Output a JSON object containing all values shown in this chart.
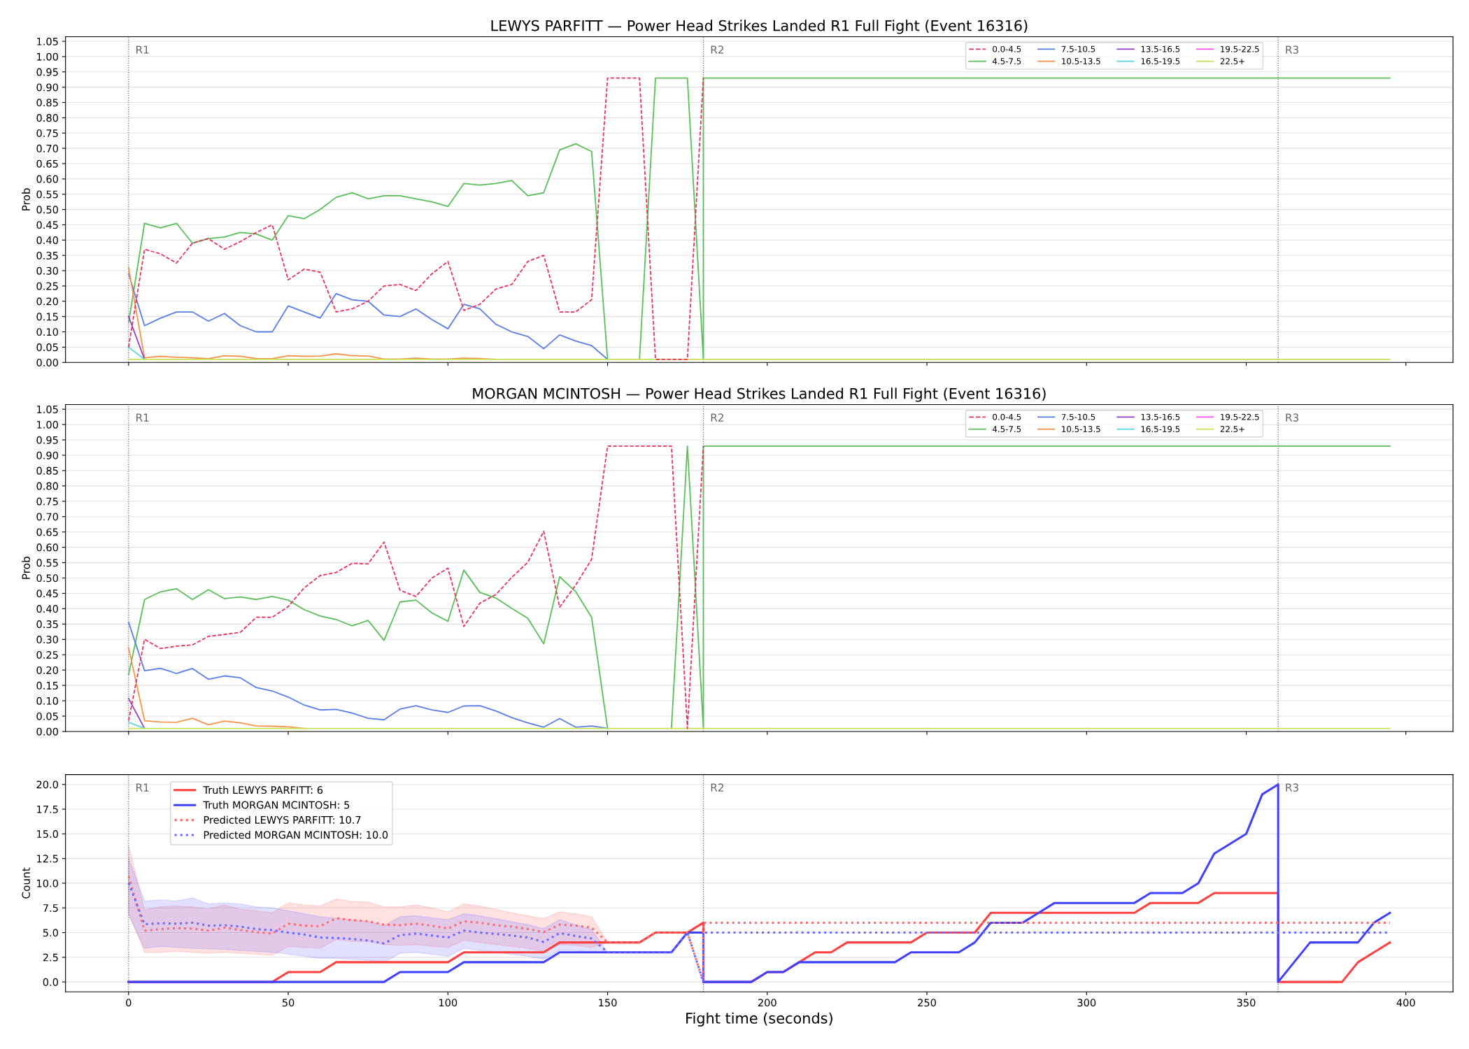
{
  "chart_data": [
    {
      "type": "line",
      "title": "LEWYS PARFITT — Power Head Strikes Landed R1 Full Fight (Event 16316)",
      "ylabel": "Prob",
      "x": [
        0,
        5,
        10,
        15,
        20,
        25,
        30,
        35,
        40,
        45,
        50,
        55,
        60,
        65,
        70,
        75,
        80,
        85,
        90,
        95,
        100,
        105,
        110,
        115,
        120,
        125,
        130,
        135,
        140,
        145,
        150,
        155,
        160,
        165,
        170,
        175,
        180,
        180,
        395
      ],
      "series": [
        {
          "name": "0.0-4.5",
          "color": "#e6335f",
          "line_style": "dashed",
          "values": [
            0.05,
            0.37,
            0.355,
            0.325,
            0.39,
            0.405,
            0.37,
            0.395,
            0.425,
            0.45,
            0.27,
            0.305,
            0.295,
            0.165,
            0.175,
            0.2,
            0.25,
            0.255,
            0.235,
            0.29,
            0.33,
            0.17,
            0.19,
            0.24,
            0.255,
            0.33,
            0.35,
            0.165,
            0.165,
            0.205,
            0.93,
            0.93,
            0.93,
            0.01,
            0.01,
            0.01,
            0.93,
            null,
            null
          ]
        },
        {
          "name": "4.5-7.5",
          "color": "#5abf5a",
          "values": [
            0.13,
            0.455,
            0.44,
            0.455,
            0.39,
            0.405,
            0.41,
            0.425,
            0.42,
            0.4,
            0.48,
            0.47,
            0.5,
            0.54,
            0.555,
            0.535,
            0.545,
            0.545,
            0.535,
            0.525,
            0.51,
            0.585,
            0.58,
            0.585,
            0.595,
            0.545,
            0.555,
            0.695,
            0.715,
            0.69,
            0.01,
            null,
            0.01,
            0.93,
            0.93,
            0.93,
            0.01,
            0.93,
            0.93
          ]
        },
        {
          "name": "7.5-10.5",
          "color": "#5a7ee6",
          "values": [
            0.29,
            0.12,
            0.145,
            0.165,
            0.165,
            0.135,
            0.16,
            0.12,
            0.1,
            0.1,
            0.185,
            0.165,
            0.145,
            0.225,
            0.205,
            0.2,
            0.155,
            0.15,
            0.175,
            0.14,
            0.11,
            0.19,
            0.175,
            0.125,
            0.1,
            0.085,
            0.045,
            0.09,
            0.07,
            0.055,
            0.01,
            null,
            null,
            null,
            null,
            null,
            null,
            null,
            null
          ]
        },
        {
          "name": "10.5-13.5",
          "color": "#f7944a",
          "values": [
            0.31,
            0.015,
            0.02,
            0.017,
            0.015,
            0.012,
            0.022,
            0.02,
            0.013,
            0.012,
            0.022,
            0.02,
            0.021,
            0.028,
            0.022,
            0.021,
            0.011,
            0.011,
            0.014,
            0.011,
            0.011,
            0.014,
            0.013,
            0.01,
            null,
            null,
            null,
            null,
            null,
            null,
            null,
            null,
            null,
            null,
            null,
            null,
            null,
            null,
            null
          ]
        },
        {
          "name": "13.5-16.5",
          "color": "#9440c8",
          "values": [
            0.15,
            0.01,
            null,
            null,
            null,
            null,
            null,
            null,
            null,
            null,
            null,
            null,
            null,
            null,
            null,
            null,
            null,
            null,
            null,
            null,
            null,
            null,
            null,
            null,
            null,
            null,
            null,
            null,
            null,
            null,
            null,
            null,
            null,
            null,
            null,
            null,
            null,
            null,
            null
          ]
        },
        {
          "name": "16.5-19.5",
          "color": "#5bd3e8",
          "values": [
            0.05,
            0.01,
            null,
            null,
            null,
            null,
            null,
            null,
            null,
            null,
            null,
            null,
            null,
            null,
            null,
            null,
            null,
            null,
            null,
            null,
            null,
            null,
            null,
            null,
            null,
            null,
            null,
            null,
            null,
            null,
            null,
            null,
            null,
            null,
            null,
            null,
            null,
            null,
            null
          ]
        },
        {
          "name": "19.5-22.5",
          "color": "#f057f0",
          "values": [
            null,
            null,
            null,
            null,
            null,
            null,
            null,
            null,
            null,
            null,
            null,
            null,
            null,
            null,
            null,
            null,
            null,
            null,
            null,
            null,
            null,
            null,
            null,
            null,
            null,
            null,
            null,
            null,
            null,
            null,
            null,
            null,
            null,
            null,
            null,
            null,
            null,
            null,
            null
          ]
        },
        {
          "name": "22.5+",
          "color": "#c6e35a",
          "values": [
            0.01,
            0.01,
            0.01,
            0.01,
            0.01,
            0.01,
            0.01,
            0.01,
            0.01,
            0.01,
            0.01,
            0.01,
            0.01,
            0.01,
            0.01,
            0.01,
            0.01,
            0.01,
            0.01,
            0.01,
            0.01,
            0.01,
            0.01,
            0.01,
            0.01,
            0.01,
            0.01,
            0.01,
            0.01,
            0.01,
            0.01,
            0.01,
            0.01,
            0.01,
            0.01,
            0.01,
            0.01,
            0.01,
            0.01
          ]
        }
      ],
      "xlim": [
        -19.75,
        414.75
      ],
      "xticks": [
        0,
        50,
        100,
        150,
        200,
        250,
        300,
        350,
        400
      ],
      "ylim": [
        0,
        1.065
      ],
      "yticks": [
        {
          "value": 0,
          "label": "0.00"
        },
        {
          "value": 0.05,
          "label": "0.05"
        },
        {
          "value": 0.1,
          "label": "0.10"
        },
        {
          "value": 0.15,
          "label": "0.15"
        },
        {
          "value": 0.2,
          "label": "0.20"
        },
        {
          "value": 0.25,
          "label": "0.25"
        },
        {
          "value": 0.3,
          "label": "0.30"
        },
        {
          "value": 0.35,
          "label": "0.35"
        },
        {
          "value": 0.4,
          "label": "0.40"
        },
        {
          "value": 0.45,
          "label": "0.45"
        },
        {
          "value": 0.5,
          "label": "0.50"
        },
        {
          "value": 0.55,
          "label": "0.55"
        },
        {
          "value": 0.6,
          "label": "0.60"
        },
        {
          "value": 0.65,
          "label": "0.65"
        },
        {
          "value": 0.7,
          "label": "0.70"
        },
        {
          "value": 0.75,
          "label": "0.75"
        },
        {
          "value": 0.8,
          "label": "0.80"
        },
        {
          "value": 0.85,
          "label": "0.85"
        },
        {
          "value": 0.9,
          "label": "0.90"
        },
        {
          "value": 0.95,
          "label": "0.95"
        },
        {
          "value": 1,
          "label": "1.00"
        },
        {
          "value": 1.05,
          "label": "1.05"
        }
      ],
      "tick_labels": "y",
      "grid": "y",
      "legend": "top right",
      "ref_lines": [
        {
          "axis": "x",
          "value": 0,
          "label": "R1",
          "color": "#666666",
          "line_style": "dotted"
        },
        {
          "axis": "x",
          "value": 180,
          "label": "R2",
          "color": "#666666",
          "line_style": "dotted"
        },
        {
          "axis": "x",
          "value": 360,
          "label": "R3",
          "color": "#666666",
          "line_style": "dotted"
        }
      ]
    },
    {
      "type": "line",
      "title": "MORGAN MCINTOSH — Power Head Strikes Landed R1 Full Fight (Event 16316)",
      "ylabel": "Prob",
      "x": [
        0,
        5,
        10,
        15,
        20,
        25,
        30,
        35,
        40,
        45,
        50,
        55,
        60,
        65,
        70,
        75,
        80,
        85,
        90,
        95,
        100,
        105,
        110,
        115,
        120,
        125,
        130,
        135,
        140,
        145,
        150,
        155,
        160,
        165,
        170,
        175,
        180,
        180,
        395
      ],
      "series": [
        {
          "name": "0.0-4.5",
          "color": "#e6335f",
          "line_style": "dashed",
          "values": [
            0.035,
            0.3,
            0.27,
            0.278,
            0.282,
            0.31,
            0.316,
            0.323,
            0.372,
            0.372,
            0.407,
            0.468,
            0.508,
            0.518,
            0.548,
            0.546,
            0.617,
            0.46,
            0.44,
            0.5,
            0.532,
            0.342,
            0.418,
            0.446,
            0.502,
            0.551,
            0.652,
            0.405,
            0.477,
            0.561,
            0.93,
            0.93,
            0.93,
            0.93,
            0.93,
            0.01,
            0.93,
            null,
            null
          ]
        },
        {
          "name": "4.5-7.5",
          "color": "#5abf5a",
          "values": [
            0.185,
            0.43,
            0.455,
            0.465,
            0.43,
            0.462,
            0.433,
            0.438,
            0.43,
            0.44,
            0.428,
            0.397,
            0.376,
            0.365,
            0.344,
            0.362,
            0.297,
            0.422,
            0.428,
            0.386,
            0.359,
            0.526,
            0.453,
            0.435,
            0.401,
            0.369,
            0.286,
            0.504,
            0.456,
            0.372,
            0.01,
            null,
            null,
            null,
            0.01,
            0.93,
            0.01,
            0.93,
            0.93
          ]
        },
        {
          "name": "7.5-10.5",
          "color": "#5a7ee6",
          "values": [
            0.356,
            0.198,
            0.206,
            0.189,
            0.205,
            0.17,
            0.181,
            0.175,
            0.143,
            0.132,
            0.112,
            0.086,
            0.07,
            0.072,
            0.06,
            0.043,
            0.038,
            0.073,
            0.084,
            0.07,
            0.062,
            0.083,
            0.084,
            0.067,
            0.045,
            0.028,
            0.014,
            0.042,
            0.014,
            0.018,
            0.01,
            null,
            null,
            null,
            null,
            null,
            null,
            null,
            null
          ]
        },
        {
          "name": "10.5-13.5",
          "color": "#f7944a",
          "values": [
            0.273,
            0.035,
            0.031,
            0.03,
            0.043,
            0.022,
            0.034,
            0.028,
            0.018,
            0.017,
            0.015,
            0.01,
            null,
            null,
            null,
            null,
            null,
            null,
            null,
            null,
            null,
            null,
            null,
            null,
            null,
            null,
            null,
            null,
            null,
            null,
            null,
            null,
            null,
            null,
            null,
            null,
            null,
            null,
            null
          ]
        },
        {
          "name": "13.5-16.5",
          "color": "#9440c8",
          "values": [
            0.107,
            0.01,
            null,
            null,
            null,
            null,
            null,
            null,
            null,
            null,
            null,
            null,
            null,
            null,
            null,
            null,
            null,
            null,
            null,
            null,
            null,
            null,
            null,
            null,
            null,
            null,
            null,
            null,
            null,
            null,
            null,
            null,
            null,
            null,
            null,
            null,
            null,
            null,
            null
          ]
        },
        {
          "name": "16.5-19.5",
          "color": "#5bd3e8",
          "values": [
            0.03,
            0.01,
            null,
            null,
            null,
            null,
            null,
            null,
            null,
            null,
            null,
            null,
            null,
            null,
            null,
            null,
            null,
            null,
            null,
            null,
            null,
            null,
            null,
            null,
            null,
            null,
            null,
            null,
            null,
            null,
            null,
            null,
            null,
            null,
            null,
            null,
            null,
            null,
            null
          ]
        },
        {
          "name": "19.5-22.5",
          "color": "#f057f0",
          "values": [
            null,
            null,
            null,
            null,
            null,
            null,
            null,
            null,
            null,
            null,
            null,
            null,
            null,
            null,
            null,
            null,
            null,
            null,
            null,
            null,
            null,
            null,
            null,
            null,
            null,
            null,
            null,
            null,
            null,
            null,
            null,
            null,
            null,
            null,
            null,
            null,
            null,
            null,
            null
          ]
        },
        {
          "name": "22.5+",
          "color": "#c6e35a",
          "values": [
            0.01,
            0.01,
            0.01,
            0.01,
            0.01,
            0.01,
            0.01,
            0.01,
            0.01,
            0.01,
            0.01,
            0.01,
            0.01,
            0.01,
            0.01,
            0.01,
            0.01,
            0.01,
            0.01,
            0.01,
            0.01,
            0.01,
            0.01,
            0.01,
            0.01,
            0.01,
            0.01,
            0.01,
            0.01,
            0.01,
            0.01,
            0.01,
            0.01,
            0.01,
            0.01,
            0.01,
            0.01,
            0.01,
            0.01
          ]
        }
      ],
      "xlim": [
        -19.75,
        414.75
      ],
      "xticks": [
        0,
        50,
        100,
        150,
        200,
        250,
        300,
        350,
        400
      ],
      "ylim": [
        0,
        1.065
      ],
      "yticks": [
        {
          "value": 0,
          "label": "0.00"
        },
        {
          "value": 0.05,
          "label": "0.05"
        },
        {
          "value": 0.1,
          "label": "0.10"
        },
        {
          "value": 0.15,
          "label": "0.15"
        },
        {
          "value": 0.2,
          "label": "0.20"
        },
        {
          "value": 0.25,
          "label": "0.25"
        },
        {
          "value": 0.3,
          "label": "0.30"
        },
        {
          "value": 0.35,
          "label": "0.35"
        },
        {
          "value": 0.4,
          "label": "0.40"
        },
        {
          "value": 0.45,
          "label": "0.45"
        },
        {
          "value": 0.5,
          "label": "0.50"
        },
        {
          "value": 0.55,
          "label": "0.55"
        },
        {
          "value": 0.6,
          "label": "0.60"
        },
        {
          "value": 0.65,
          "label": "0.65"
        },
        {
          "value": 0.7,
          "label": "0.70"
        },
        {
          "value": 0.75,
          "label": "0.75"
        },
        {
          "value": 0.8,
          "label": "0.80"
        },
        {
          "value": 0.85,
          "label": "0.85"
        },
        {
          "value": 0.9,
          "label": "0.90"
        },
        {
          "value": 0.95,
          "label": "0.95"
        },
        {
          "value": 1,
          "label": "1.00"
        },
        {
          "value": 1.05,
          "label": "1.05"
        }
      ],
      "tick_labels": "y",
      "grid": "y",
      "legend": "top right",
      "ref_lines": [
        {
          "axis": "x",
          "value": 0,
          "label": "R1",
          "color": "#666666",
          "line_style": "dotted"
        },
        {
          "axis": "x",
          "value": 180,
          "label": "R2",
          "color": "#666666",
          "line_style": "dotted"
        },
        {
          "axis": "x",
          "value": 360,
          "label": "R3",
          "color": "#666666",
          "line_style": "dotted"
        }
      ]
    },
    {
      "type": "line",
      "xlabel": "Fight time (seconds)",
      "ylabel": "Count",
      "series": [
        {
          "name": "Truth LEWYS PARFITT: 6",
          "color": "#ff4040",
          "x": [
            0,
            45,
            50,
            60,
            65,
            100,
            105,
            130,
            135,
            160,
            165,
            175,
            180,
            180,
            195,
            200,
            205,
            210,
            215,
            220,
            225,
            245,
            250,
            265,
            270,
            315,
            320,
            335,
            340,
            360,
            360,
            380,
            385,
            390,
            395
          ],
          "values": [
            0,
            0,
            1,
            1,
            2,
            2,
            3,
            3,
            4,
            4,
            5,
            5,
            6,
            0,
            0,
            1,
            1,
            2,
            3,
            3,
            4,
            4,
            5,
            5,
            7,
            7,
            8,
            8,
            9,
            9,
            0,
            0,
            2,
            3,
            4
          ]
        },
        {
          "name": "Truth MORGAN MCINTOSH: 5",
          "color": "#4040ff",
          "x": [
            0,
            80,
            85,
            100,
            105,
            130,
            135,
            170,
            175,
            180,
            180,
            195,
            200,
            205,
            210,
            240,
            245,
            260,
            265,
            270,
            280,
            285,
            290,
            315,
            320,
            330,
            335,
            340,
            345,
            350,
            355,
            360,
            360,
            365,
            370,
            385,
            390,
            395
          ],
          "values": [
            0,
            0,
            1,
            1,
            2,
            2,
            3,
            3,
            5,
            5,
            0,
            0,
            1,
            1,
            2,
            2,
            3,
            3,
            4,
            6,
            6,
            7,
            8,
            8,
            9,
            9,
            10,
            13,
            14,
            15,
            19,
            20,
            0,
            2,
            4,
            4,
            6,
            7
          ]
        },
        {
          "name": "Predicted LEWYS PARFITT: 10.7",
          "color": "#ff6b6b",
          "line_style": "dotted",
          "x": [
            0,
            5,
            10,
            15,
            20,
            25,
            30,
            35,
            40,
            45,
            50,
            55,
            60,
            65,
            70,
            75,
            80,
            85,
            90,
            95,
            100,
            105,
            110,
            115,
            120,
            125,
            130,
            135,
            140,
            145,
            150,
            155,
            160,
            165,
            170,
            175,
            180,
            180,
            395
          ],
          "values": [
            10.7,
            5.2,
            5.35,
            5.45,
            5.4,
            5.2,
            5.5,
            5.25,
            5.05,
            4.9,
            5.9,
            5.7,
            5.65,
            6.45,
            6.25,
            6.15,
            5.8,
            5.75,
            5.9,
            5.7,
            5.4,
            6.15,
            6.0,
            5.75,
            5.6,
            5.35,
            5.05,
            5.8,
            5.7,
            5.5,
            4,
            4,
            4,
            5,
            5,
            5,
            0,
            6,
            6
          ],
          "lower": [
            7.0,
            3.0,
            3.0,
            3.1,
            3.0,
            2.9,
            3.0,
            2.9,
            2.8,
            2.7,
            3.6,
            3.5,
            3.4,
            4.3,
            4.1,
            4.1,
            3.8,
            3.7,
            3.8,
            3.6,
            3.5,
            4.2,
            4.0,
            3.8,
            3.6,
            3.4,
            3.1,
            3.8,
            3.7,
            3.5,
            4.0,
            null,
            null,
            null,
            null,
            null,
            null,
            null,
            null
          ],
          "upper": [
            13.8,
            7.3,
            7.6,
            7.7,
            7.6,
            7.4,
            7.8,
            7.35,
            7.2,
            7.0,
            8.0,
            7.8,
            7.7,
            8.4,
            8.15,
            8.1,
            7.6,
            7.6,
            7.8,
            7.5,
            7.1,
            7.9,
            7.7,
            7.35,
            7.0,
            6.7,
            6.4,
            7.1,
            6.9,
            6.6,
            4.0,
            null,
            null,
            null,
            null,
            null,
            null,
            null,
            null
          ]
        },
        {
          "name": "Predicted MORGAN MCINTOSH: 10.0",
          "color": "#6b6bff",
          "line_style": "dotted",
          "x": [
            0,
            5,
            10,
            15,
            20,
            25,
            30,
            35,
            40,
            45,
            50,
            55,
            60,
            65,
            70,
            75,
            80,
            85,
            90,
            95,
            100,
            105,
            110,
            115,
            120,
            125,
            130,
            135,
            140,
            145,
            150,
            155,
            160,
            165,
            170,
            175,
            180,
            180,
            395
          ],
          "values": [
            10.0,
            5.85,
            5.95,
            5.9,
            6.0,
            5.7,
            5.75,
            5.6,
            5.35,
            5.25,
            5.0,
            4.8,
            4.5,
            4.45,
            4.35,
            4.2,
            3.9,
            4.75,
            4.9,
            4.7,
            4.5,
            5.2,
            5.0,
            4.85,
            4.7,
            4.5,
            4.05,
            4.95,
            4.65,
            4.4,
            3,
            3,
            3,
            3,
            3,
            5,
            0,
            5,
            5
          ],
          "lower": [
            6.8,
            3.4,
            3.6,
            3.5,
            3.4,
            3.35,
            3.3,
            3.2,
            3.1,
            3.0,
            2.8,
            2.6,
            2.4,
            2.4,
            2.3,
            2.2,
            2.0,
            2.9,
            3.0,
            2.8,
            2.6,
            3.4,
            3.2,
            3.0,
            2.8,
            2.6,
            2.3,
            3.2,
            3.2,
            3.0,
            3.0,
            null,
            null,
            null,
            null,
            null,
            null,
            null,
            null
          ],
          "upper": [
            12.5,
            8.2,
            8.3,
            8.2,
            8.5,
            7.9,
            8.0,
            7.9,
            7.6,
            7.5,
            7.2,
            6.9,
            6.6,
            6.45,
            6.3,
            6.1,
            5.7,
            6.6,
            6.7,
            6.5,
            6.3,
            6.9,
            6.7,
            6.4,
            6.1,
            5.8,
            5.4,
            6.3,
            5.8,
            5.3,
            3.0,
            null,
            null,
            null,
            null,
            null,
            null,
            null,
            null
          ]
        }
      ],
      "xlim": [
        -19.75,
        414.75
      ],
      "xticks": [
        0,
        50,
        100,
        150,
        200,
        250,
        300,
        350,
        400
      ],
      "ylim": [
        -1,
        21
      ],
      "yticks": [
        {
          "value": 0,
          "label": "0.0"
        },
        {
          "value": 2.5,
          "label": "2.5"
        },
        {
          "value": 5,
          "label": "5.0"
        },
        {
          "value": 7.5,
          "label": "7.5"
        },
        {
          "value": 10,
          "label": "10.0"
        },
        {
          "value": 12.5,
          "label": "12.5"
        },
        {
          "value": 15,
          "label": "15.0"
        },
        {
          "value": 17.5,
          "label": "17.5"
        },
        {
          "value": 20,
          "label": "20.0"
        }
      ],
      "grid": "y",
      "legend": "top left",
      "ref_lines": [
        {
          "axis": "x",
          "value": 0,
          "label": "R1",
          "color": "#666666",
          "line_style": "dotted"
        },
        {
          "axis": "x",
          "value": 180,
          "label": "R2",
          "color": "#666666",
          "line_style": "dotted"
        },
        {
          "axis": "x",
          "value": 360,
          "label": "R3",
          "color": "#666666",
          "line_style": "dotted"
        }
      ]
    }
  ]
}
